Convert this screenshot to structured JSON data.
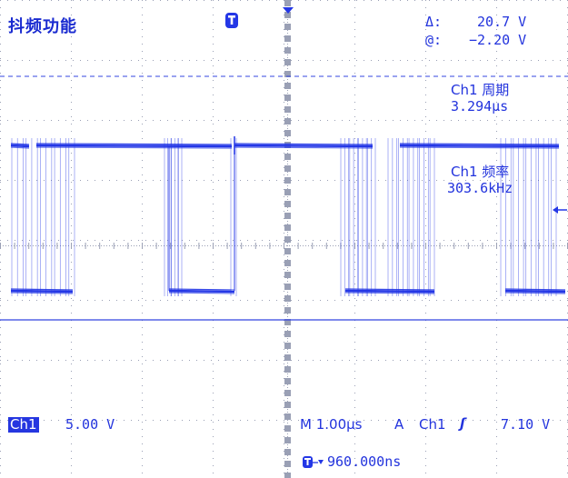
{
  "title": "抖频功能",
  "cursor_readout": {
    "delta_symbol": "Δ:",
    "delta_value": "20.7 V",
    "at_symbol": "@:",
    "at_value": "−2.20 V"
  },
  "measurements": [
    {
      "label": "Ch1 周期",
      "value": "3.294μs"
    },
    {
      "label": "Ch1 频率",
      "value": "303.6kHz"
    }
  ],
  "channel": {
    "name": "Ch1",
    "scale": "5.00 V"
  },
  "timebase": {
    "label": "M 1.00μs",
    "trigger_mode": "A",
    "trigger_source": "Ch1",
    "trigger_slope_symbol": "ʃ",
    "trigger_level": "7.10 V"
  },
  "trigger_position": "960.000ns",
  "icons": {
    "trigger_marker": "T-marker-icon",
    "trigger_position_arrow": "triangle-down-icon",
    "trigger_level_arrow": "left-arrow-icon"
  },
  "colors": {
    "trace": "#2437e6",
    "text": "#2233dd",
    "grid": "#9aa0b5",
    "background": "#ffffff"
  }
}
